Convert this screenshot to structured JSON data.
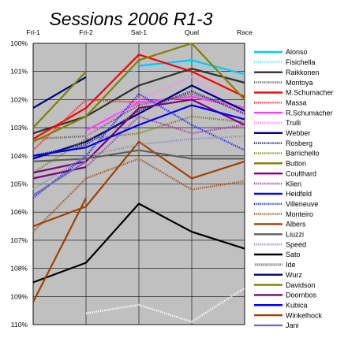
{
  "chart_data": {
    "type": "line",
    "title": "Sessions 2006 R1-3",
    "categories": [
      "Fri-1",
      "Fri-2",
      "Sat-1",
      "Qual",
      "Race"
    ],
    "y_tick_labels": [
      "100%",
      "101%",
      "102%",
      "103%",
      "104%",
      "105%",
      "106%",
      "107%",
      "108%",
      "109%",
      "110%"
    ],
    "ylim": [
      100,
      110
    ],
    "y_inverted": true,
    "plot_background": "#c0c0c0",
    "grid": true,
    "legend_position": "right",
    "series": [
      {
        "name": "Alonso",
        "color": "#00c8ff",
        "style": "solid",
        "values": [
          null,
          null,
          100.8,
          100.6,
          101.1
        ]
      },
      {
        "name": "Fisichella",
        "color": "#6ee0ff",
        "style": "dotted",
        "values": [
          null,
          102.0,
          100.9,
          100.7,
          101.3
        ]
      },
      {
        "name": "Raikkonen",
        "color": "#303030",
        "style": "solid",
        "values": [
          103.2,
          102.6,
          101.5,
          100.9,
          101.4
        ]
      },
      {
        "name": "Montoya",
        "color": "#606060",
        "style": "dotted",
        "values": [
          103.4,
          103.3,
          102.2,
          101.8,
          102.3
        ]
      },
      {
        "name": "M.Schumacher",
        "color": "#ff0000",
        "style": "solid",
        "values": [
          103.4,
          102.3,
          100.4,
          101.0,
          101.9
        ]
      },
      {
        "name": "Massa",
        "color": "#ff2020",
        "style": "dotted",
        "values": [
          103.8,
          102.0,
          102.1,
          101.9,
          102.3
        ]
      },
      {
        "name": "R.Schumacher",
        "color": "#ff40ff",
        "style": "solid",
        "values": [
          null,
          103.1,
          102.1,
          101.9,
          102.3
        ]
      },
      {
        "name": "Trulli",
        "color": "#ff80ff",
        "style": "dotted",
        "values": [
          null,
          103.3,
          102.0,
          101.2,
          102.6
        ]
      },
      {
        "name": "Webber",
        "color": "#000080",
        "style": "solid",
        "values": [
          104.1,
          103.5,
          102.5,
          101.5,
          102.4
        ]
      },
      {
        "name": "Rosberg",
        "color": "#202080",
        "style": "dotted",
        "values": [
          104.0,
          103.6,
          102.4,
          101.7,
          102.5
        ]
      },
      {
        "name": "Barrichello",
        "color": "#808020",
        "style": "dotted",
        "values": [
          104.6,
          103.4,
          103.2,
          102.6,
          102.8
        ]
      },
      {
        "name": "Button",
        "color": "#808000",
        "style": "solid",
        "values": [
          103.5,
          102.6,
          100.6,
          100.0,
          102.0
        ]
      },
      {
        "name": "Coulthard",
        "color": "#800080",
        "style": "solid",
        "values": [
          104.6,
          104.2,
          102.3,
          102.0,
          102.9
        ]
      },
      {
        "name": "Klien",
        "color": "#a040a0",
        "style": "dotted",
        "values": [
          104.8,
          104.4,
          102.6,
          103.2,
          102.9
        ]
      },
      {
        "name": "Heidfeld",
        "color": "#0000ff",
        "style": "solid",
        "values": [
          104.0,
          103.7,
          102.9,
          102.2,
          102.7
        ]
      },
      {
        "name": "Villeneuve",
        "color": "#2020ff",
        "style": "dotted",
        "values": [
          105.5,
          104.0,
          101.8,
          102.9,
          103.8
        ]
      },
      {
        "name": "Monteiro",
        "color": "#a05020",
        "style": "dotted",
        "values": [
          106.7,
          104.8,
          104.1,
          105.2,
          104.9
        ]
      },
      {
        "name": "Albers",
        "color": "#a04000",
        "style": "solid",
        "values": [
          106.5,
          105.8,
          103.5,
          104.8,
          104.2
        ]
      },
      {
        "name": "Liuzzi",
        "color": "#606060",
        "style": "solid",
        "values": [
          104.2,
          104.1,
          103.8,
          104.1,
          104.1
        ]
      },
      {
        "name": "Speed",
        "color": "#9090c0",
        "style": "dotted",
        "values": [
          105.2,
          104.0,
          103.6,
          103.4,
          103.3
        ]
      },
      {
        "name": "Sato",
        "color": "#000000",
        "style": "solid",
        "values": [
          108.5,
          107.8,
          105.7,
          106.7,
          107.3
        ]
      },
      {
        "name": "Ide",
        "color": "#ffffff",
        "style": "dotted",
        "values": [
          null,
          109.6,
          109.3,
          109.9,
          108.7
        ]
      },
      {
        "name": "Wurz",
        "color": "#000080",
        "style": "solid",
        "values": [
          102.3,
          101.2,
          null,
          null,
          null
        ]
      },
      {
        "name": "Davidson",
        "color": "#808000",
        "style": "solid",
        "values": [
          103.0,
          101.0,
          null,
          null,
          null
        ]
      },
      {
        "name": "Doornbos",
        "color": "#800080",
        "style": "solid",
        "values": [
          104.8,
          104.4,
          null,
          null,
          null
        ]
      },
      {
        "name": "Kubica",
        "color": "#0000ff",
        "style": "solid",
        "values": [
          104.0,
          103.7,
          null,
          null,
          null
        ]
      },
      {
        "name": "Winkelhock",
        "color": "#a04000",
        "style": "solid",
        "values": [
          109.2,
          105.5,
          null,
          null,
          null
        ]
      },
      {
        "name": "Jani",
        "color": "#7070b0",
        "style": "solid",
        "values": [
          105.4,
          104.2,
          null,
          null,
          null
        ]
      }
    ]
  }
}
